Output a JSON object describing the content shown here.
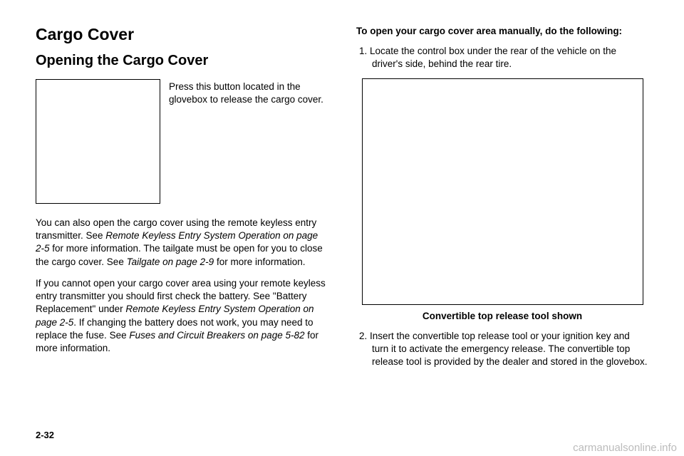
{
  "left": {
    "h1": "Cargo Cover",
    "h2": "Opening the Cargo Cover",
    "sideText": "Press this button located in the glovebox to release the cargo cover.",
    "p1_part1": "You can also open the cargo cover using the remote keyless entry transmitter. See ",
    "p1_italic1": "Remote Keyless Entry System Operation on page 2-5",
    "p1_part2": " for more information. The tailgate must be open for you to close the cargo cover. See ",
    "p1_italic2": "Tailgate on page 2-9",
    "p1_part3": " for more information.",
    "p2_part1": "If you cannot open your cargo cover area using your remote keyless entry transmitter you should first check the battery. See \"Battery Replacement\" under ",
    "p2_italic1": "Remote Keyless Entry System Operation on page 2-5",
    "p2_part2": ". If changing the battery does not work, you may need to replace the fuse. See ",
    "p2_italic2": "Fuses and Circuit Breakers on page 5-82",
    "p2_part3": " for more information."
  },
  "right": {
    "heading": "To open your cargo cover area manually, do the following:",
    "step1_num": "1.",
    "step1_text": " Locate the control box under the rear of the vehicle on the driver's side, behind the rear tire.",
    "caption": "Convertible top release tool shown",
    "step2_num": "2.",
    "step2_text": " Insert the convertible top release tool or your ignition key and turn it to activate the emergency release. The convertible top release tool is provided by the dealer and stored in the glovebox."
  },
  "pageNum": "2-32",
  "watermark": "carmanualsonline.info"
}
